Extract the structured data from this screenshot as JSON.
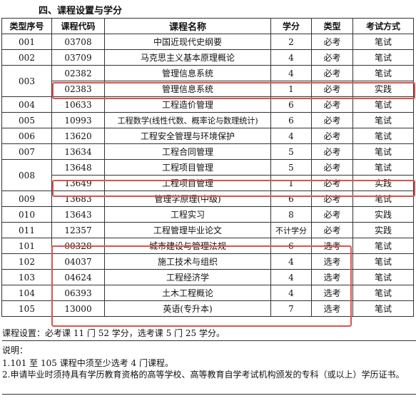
{
  "section_title": "四、课程设置与学分",
  "headers": {
    "seq": "类型序号",
    "code": "课程代码",
    "name": "课程名称",
    "credit": "学分",
    "type": "类型",
    "exam": "考试方式"
  },
  "rows": [
    {
      "seq": "001",
      "code": "03708",
      "name": "中国近现代史纲要",
      "credit": "2",
      "type": "必考",
      "exam": "笔试"
    },
    {
      "seq": "002",
      "code": "03709",
      "name": "马克思主义基本原理概论",
      "credit": "4",
      "type": "必考",
      "exam": "笔试"
    },
    {
      "seq": "003",
      "code": "02382",
      "name": "管理信息系统",
      "credit": "4",
      "type": "必考",
      "exam": "笔试"
    },
    {
      "seq": "",
      "code": "02383",
      "name": "管理信息系统",
      "credit": "1",
      "type": "必考",
      "exam": "实践"
    },
    {
      "seq": "004",
      "code": "10633",
      "name": "工程造价管理",
      "credit": "6",
      "type": "必考",
      "exam": "笔试"
    },
    {
      "seq": "005",
      "code": "10993",
      "name": "工程数学(线性代数、概率论与数理统计)",
      "credit": "6",
      "type": "必考",
      "exam": "笔试"
    },
    {
      "seq": "006",
      "code": "13620",
      "name": "工程安全管理与环境保护",
      "credit": "4",
      "type": "必考",
      "exam": "笔试"
    },
    {
      "seq": "007",
      "code": "13634",
      "name": "工程合同管理",
      "credit": "5",
      "type": "必考",
      "exam": "笔试"
    },
    {
      "seq": "008",
      "code": "13648",
      "name": "工程项目管理",
      "credit": "5",
      "type": "必考",
      "exam": "笔试"
    },
    {
      "seq": "",
      "code": "13649",
      "name": "工程项目管理",
      "credit": "1",
      "type": "必考",
      "exam": "实践"
    },
    {
      "seq": "009",
      "code": "13683",
      "name": "管理学原理(中级)",
      "credit": "6",
      "type": "必考",
      "exam": "笔试"
    },
    {
      "seq": "010",
      "code": "13643",
      "name": "工程实习",
      "credit": "8",
      "type": "必考",
      "exam": "实践"
    },
    {
      "seq": "011",
      "code": "12357",
      "name": "工程管理毕业论文",
      "credit": "不计学分",
      "type": "必考",
      "exam": "实践"
    },
    {
      "seq": "101",
      "code": "00328",
      "name": "城市建设与管理法规",
      "credit": "6",
      "type": "选考",
      "exam": "笔试"
    },
    {
      "seq": "102",
      "code": "04037",
      "name": "施工技术与组织",
      "credit": "4",
      "type": "选考",
      "exam": "笔试"
    },
    {
      "seq": "103",
      "code": "04624",
      "name": "工程经济学",
      "credit": "4",
      "type": "选考",
      "exam": "笔试"
    },
    {
      "seq": "104",
      "code": "06393",
      "name": "土木工程概论",
      "credit": "4",
      "type": "选考",
      "exam": "笔试"
    },
    {
      "seq": "105",
      "code": "13000",
      "name": "英语(专升本)",
      "credit": "7",
      "type": "选考",
      "exam": "笔试"
    }
  ],
  "summary": "课程设置：必考课 11 门 52 学分，选考课 5 门 25 学分。",
  "notes_title": "说明：",
  "note1": "1.101 至 105 课程中须至少选考 4 门课程。",
  "note2": "2.申请毕业时须持具有学历教育资格的高等学校、高等教育自学考试机构颁发的专科（或以上）学历证书。",
  "footer_fragment": "...",
  "highlight_color": "#d9534f"
}
